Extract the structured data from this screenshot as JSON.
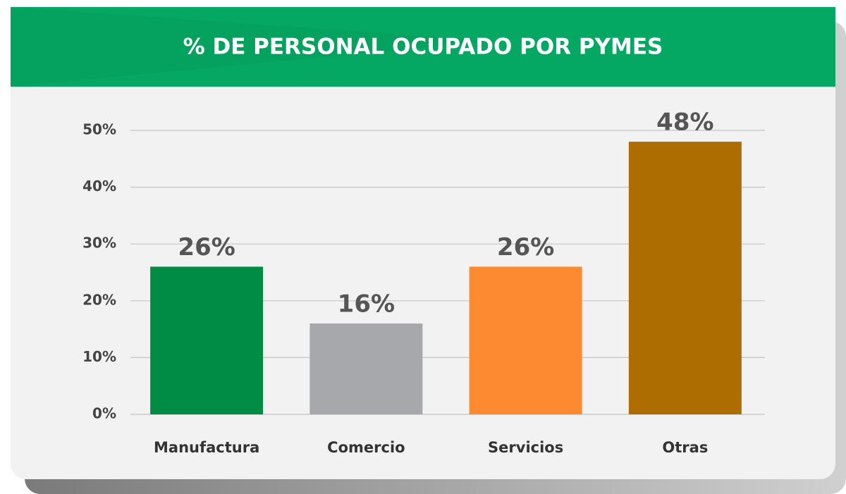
{
  "chart_data": {
    "type": "bar",
    "title": "% DE PERSONAL OCUPADO POR PYMES",
    "categories": [
      "Manufactura",
      "Comercio",
      "Servicios",
      "Otras"
    ],
    "values": [
      26,
      16,
      26,
      48
    ],
    "value_labels": [
      "26%",
      "16%",
      "26%",
      "48%"
    ],
    "colors": [
      "#008c45",
      "#a6a8ab",
      "#fd8a30",
      "#ad6d00"
    ],
    "ylim": [
      0,
      50
    ],
    "yticks": [
      {
        "value": 0,
        "label": "0%"
      },
      {
        "value": 10,
        "label": "10%"
      },
      {
        "value": 20,
        "label": "20%"
      },
      {
        "value": 30,
        "label": "30%"
      },
      {
        "value": 40,
        "label": "40%"
      },
      {
        "value": 50,
        "label": "50%"
      }
    ],
    "grid": true
  }
}
